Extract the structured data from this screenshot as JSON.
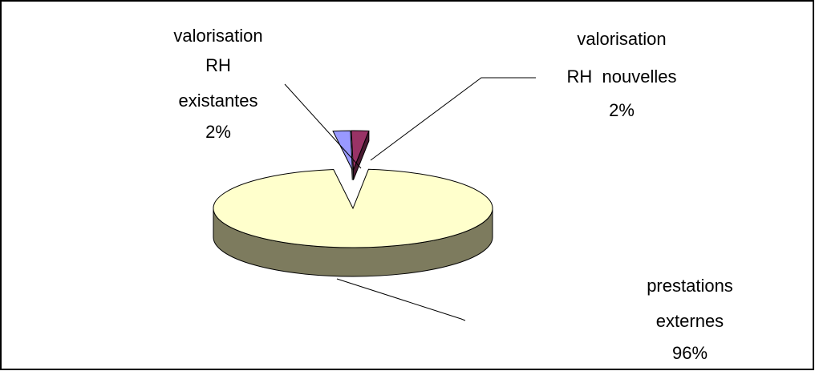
{
  "chart_data": {
    "type": "pie",
    "style": "3d-exploded",
    "slices": [
      {
        "label_lines": [
          "valorisation",
          "RH",
          "existantes"
        ],
        "value_label": "2%",
        "value": 2,
        "color": "#9999FF",
        "side_color": "#3A3A7A"
      },
      {
        "label_lines": [
          "valorisation",
          "RH  nouvelles"
        ],
        "value_label": "2%",
        "value": 2,
        "color": "#993366",
        "side_color": "#4A1A32"
      },
      {
        "label_lines": [
          "prestations",
          "externes"
        ],
        "value_label": "96%",
        "value": 96,
        "color": "#FFFFCC",
        "side_color": "#7D7B5E"
      }
    ]
  }
}
